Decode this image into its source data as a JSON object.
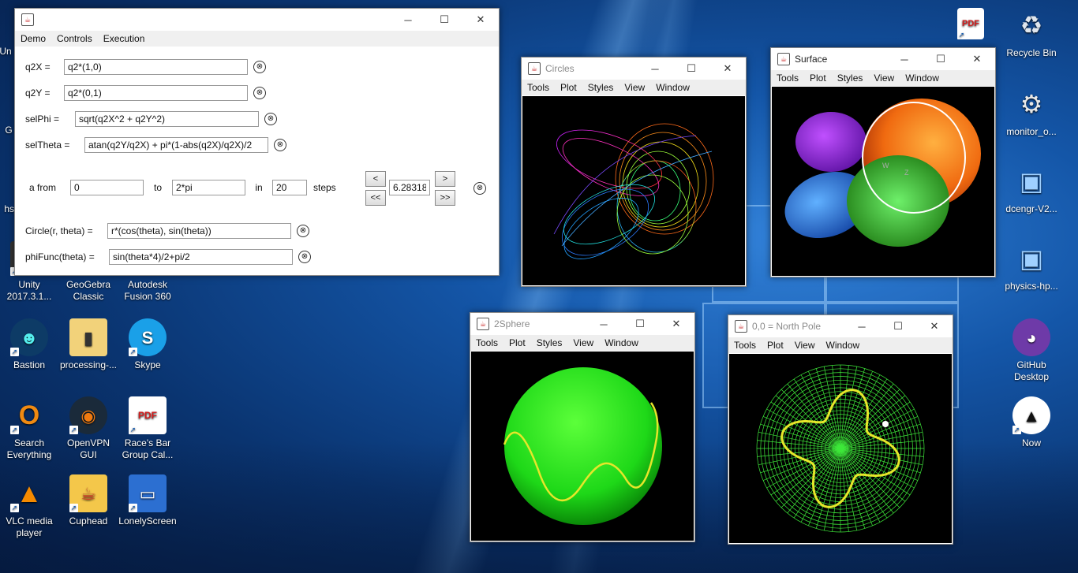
{
  "desktop": {
    "left_icons": [
      {
        "label": "Unity 2017.3.1...",
        "glyph": "◆",
        "color": "#222"
      },
      {
        "label": "GeoGebra Classic",
        "glyph": "●",
        "color": "#5b5b5b"
      },
      {
        "label": "Autodesk Fusion 360",
        "glyph": "F",
        "color": "#e46a13"
      },
      {
        "label": "Bastion",
        "glyph": "☻",
        "color": "#0d3b66"
      },
      {
        "label": "processing-...",
        "glyph": "▮",
        "color": "#f0c040"
      },
      {
        "label": "Skype",
        "glyph": "S",
        "color": "#1aa0e8"
      },
      {
        "label": "Search Everything",
        "glyph": "O",
        "color": "#f08a12"
      },
      {
        "label": "OpenVPN GUI",
        "glyph": "◉",
        "color": "#f07a10"
      },
      {
        "label": "Race's Bar Group Cal...",
        "glyph": "PDF",
        "color": "#d21d1d"
      },
      {
        "label": "VLC media player",
        "glyph": "▲",
        "color": "#f58a00"
      },
      {
        "label": "Cuphead",
        "glyph": "☕",
        "color": "#d8402a"
      },
      {
        "label": "LonelyScreen",
        "glyph": "▭",
        "color": "#2c6fd1"
      }
    ],
    "partial_labels": {
      "un": "Un",
      "g": "G",
      "hs": "hs_"
    },
    "right_icons": [
      {
        "label": "Recycle Bin",
        "glyph": "♻",
        "color": "#dfe6ee"
      },
      {
        "label": "monitor_o...",
        "glyph": "⚙",
        "color": "#e8e8e8"
      },
      {
        "label": "dcengr-V2...",
        "glyph": "▣",
        "color": "#2f7fd6"
      },
      {
        "label": "physics-hp...",
        "glyph": "▣",
        "color": "#2f7fd6"
      },
      {
        "label": "GitHub Desktop",
        "glyph": "◕",
        "color": "#6e3aa8"
      },
      {
        "label": "Now",
        "glyph": "▲",
        "color": "#ffffff"
      }
    ],
    "top_file_icon": "PDF"
  },
  "main_window": {
    "menu": [
      "Demo",
      "Controls",
      "Execution"
    ],
    "controls": {
      "minimize": "─",
      "maximize": "☐",
      "close": "✕"
    },
    "fields": {
      "q2x": {
        "label": "q2X =",
        "value": "q2*(1,0)"
      },
      "q2y": {
        "label": "q2Y =",
        "value": "q2*(0,1)"
      },
      "selphi": {
        "label": "selPhi =",
        "value": "sqrt(q2X^2 + q2Y^2)"
      },
      "seltheta": {
        "label": "selTheta =",
        "value": "atan(q2Y/q2X) + pi*(1-abs(q2X)/q2X)/2"
      },
      "circle": {
        "label": "Circle(r, theta) =",
        "value": "r*(cos(theta), sin(theta))"
      },
      "phifunc": {
        "label": "phiFunc(theta) =",
        "value": "sin(theta*4)/2+pi/2"
      }
    },
    "loop": {
      "a_from_label": "a from",
      "from_value": "0",
      "to_label": "to",
      "to_value": "2*pi",
      "in_label": "in",
      "steps_value": "20",
      "steps_label": "steps",
      "current_value": "6.28318",
      "prev": "<",
      "next": ">",
      "first": "<<",
      "last": ">>"
    },
    "clear_glyph": "⊗"
  },
  "plot_windows": {
    "circles": {
      "title": "Circles",
      "menu": [
        "Tools",
        "Plot",
        "Styles",
        "View",
        "Window"
      ]
    },
    "surface": {
      "title": "Surface",
      "menu": [
        "Tools",
        "Plot",
        "Styles",
        "View",
        "Window"
      ],
      "axis_labels": [
        "W",
        "Z"
      ]
    },
    "sphere": {
      "title": "2Sphere",
      "menu": [
        "Tools",
        "Plot",
        "Styles",
        "View",
        "Window"
      ]
    },
    "north_pole": {
      "title": "0,0 = North Pole",
      "menu": [
        "Tools",
        "Plot",
        "View",
        "Window"
      ]
    }
  }
}
